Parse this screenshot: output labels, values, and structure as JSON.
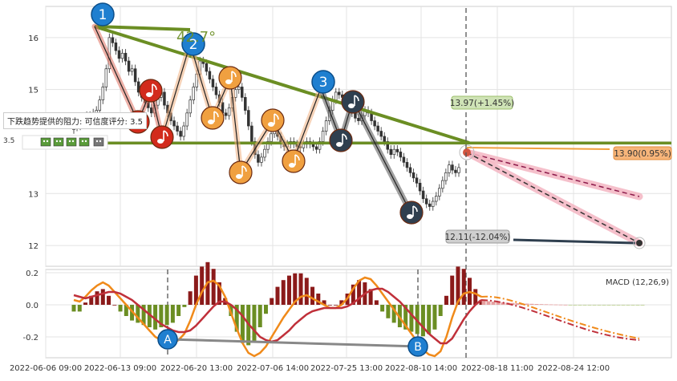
{
  "tooltip": {
    "label": "下跌趋势提供的阻力: 可信度评分:",
    "score": "3.5",
    "rating_prefix": "3.5"
  },
  "annotations": {
    "angle": "42.7°",
    "target_up": "13.97(+1.45%)",
    "target_flat": "13.90(0.95%)",
    "target_down": "12.11(-12.04%)",
    "macd_label": "MACD (12,26,9)"
  },
  "waves": [
    "1",
    "2",
    "3"
  ],
  "macd_points": [
    "A",
    "B"
  ],
  "colors": {
    "trend_green": "#6b8e23",
    "support_green": "#6b8e23",
    "bull_candle": "#333333",
    "wave_blue": "#1f7fd0",
    "note_orange": "#f0a040",
    "note_red": "#d22b1c",
    "note_dark": "#2f3f4f",
    "macd_fast": "#f08a1a",
    "macd_slow": "#c0303a",
    "hist_pos": "#8b1a1a",
    "hist_neg": "#6b8e23"
  },
  "chart_data": {
    "type": "candlestick",
    "x_ticks": [
      "2022-06-06 09:00",
      "2022-06-13 09:00",
      "2022-06-20 13:00",
      "2022-07-06 14:00",
      "2022-07-25 13:00",
      "2022-08-10 14:00",
      "2022-08-18 11:00",
      "2022-08-24 12:00"
    ],
    "y_ticks": [
      16,
      15,
      14,
      13,
      12
    ],
    "ylim": [
      11.6,
      16.6
    ],
    "macd_y_ticks": [
      "0.2",
      "0.0",
      "-0.2"
    ],
    "macd_ylim": [
      -0.33,
      0.22
    ],
    "close": [
      14.28,
      14.3,
      14.4,
      14.4,
      14.5,
      14.45,
      14.55,
      14.6,
      14.8,
      15.05,
      15.4,
      16.0,
      15.9,
      15.75,
      15.6,
      15.7,
      15.55,
      15.35,
      15.4,
      15.15,
      14.95,
      14.85,
      14.75,
      14.65,
      14.55,
      14.7,
      14.85,
      14.95,
      14.7,
      14.55,
      14.4,
      14.3,
      14.2,
      14.1,
      14.3,
      14.55,
      14.8,
      15.05,
      15.3,
      15.55,
      15.5,
      15.35,
      15.2,
      15.05,
      14.9,
      14.75,
      14.55,
      14.5,
      14.65,
      14.85,
      15.0,
      15.05,
      14.85,
      14.6,
      14.3,
      14.0,
      13.75,
      13.6,
      13.7,
      13.85,
      14.0,
      14.15,
      14.25,
      14.1,
      13.95,
      13.9,
      13.95,
      14.0,
      13.95,
      13.9,
      13.88,
      13.95,
      14.0,
      13.95,
      13.9,
      13.85,
      14.0,
      14.2,
      14.4,
      14.6,
      14.8,
      14.95,
      14.9,
      14.85,
      14.75,
      14.65,
      14.55,
      14.45,
      14.4,
      14.5,
      14.6,
      14.55,
      14.4,
      14.3,
      14.2,
      14.1,
      14.0,
      13.85,
      13.75,
      13.85,
      13.8,
      13.7,
      13.6,
      13.5,
      13.4,
      13.3,
      13.2,
      13.05,
      12.9,
      12.8,
      12.75,
      12.85,
      12.95,
      13.1,
      13.25,
      13.4,
      13.55,
      13.45,
      13.4,
      13.5
    ],
    "support_level": 13.97,
    "projections": [
      {
        "label": "13.97(+1.45%)",
        "value": 13.97
      },
      {
        "label": "13.90(0.95%)",
        "value": 13.9
      },
      {
        "label": "12.11(-12.04%)",
        "value": 12.11
      }
    ],
    "macd": [
      0.03,
      0.02,
      0.05,
      0.09,
      0.12,
      0.14,
      0.12,
      0.08,
      0.04,
      0.0,
      -0.04,
      -0.08,
      -0.12,
      -0.16,
      -0.2,
      -0.22,
      -0.23,
      -0.24,
      -0.22,
      -0.18,
      -0.1,
      0.0,
      0.08,
      0.14,
      0.15,
      0.12,
      0.05,
      -0.05,
      -0.15,
      -0.24,
      -0.3,
      -0.32,
      -0.3,
      -0.26,
      -0.2,
      -0.14,
      -0.08,
      -0.03,
      0.02,
      0.05,
      0.06,
      0.04,
      0.02,
      0.0,
      -0.02,
      -0.02,
      0.0,
      0.04,
      0.1,
      0.15,
      0.17,
      0.16,
      0.12,
      0.07,
      0.02,
      -0.03,
      -0.08,
      -0.13,
      -0.18,
      -0.23,
      -0.28,
      -0.31,
      -0.32,
      -0.29,
      -0.2,
      -0.08,
      0.02,
      0.07,
      0.08,
      0.07,
      0.05
    ],
    "signal": [
      0.06,
      0.05,
      0.04,
      0.05,
      0.06,
      0.07,
      0.08,
      0.08,
      0.07,
      0.05,
      0.03,
      0.0,
      -0.03,
      -0.06,
      -0.09,
      -0.12,
      -0.14,
      -0.16,
      -0.17,
      -0.17,
      -0.16,
      -0.13,
      -0.09,
      -0.05,
      -0.01,
      0.02,
      0.02,
      0.0,
      -0.03,
      -0.07,
      -0.12,
      -0.16,
      -0.2,
      -0.22,
      -0.23,
      -0.22,
      -0.19,
      -0.16,
      -0.12,
      -0.09,
      -0.06,
      -0.04,
      -0.03,
      -0.02,
      -0.02,
      -0.02,
      -0.02,
      -0.01,
      0.01,
      0.04,
      0.07,
      0.09,
      0.1,
      0.1,
      0.08,
      0.05,
      0.02,
      -0.02,
      -0.06,
      -0.1,
      -0.14,
      -0.18,
      -0.21,
      -0.24,
      -0.24,
      -0.21,
      -0.15,
      -0.09,
      -0.04,
      0.0,
      0.03
    ]
  }
}
